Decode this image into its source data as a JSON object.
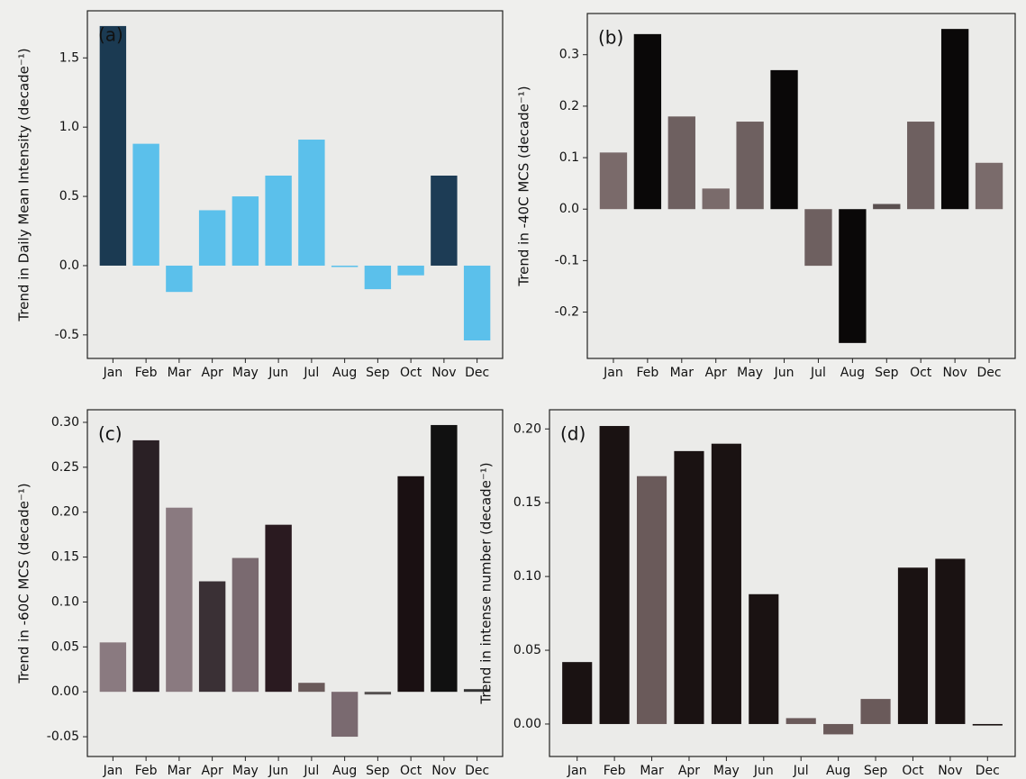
{
  "chart_data": [
    {
      "type": "bar",
      "label": "(a)",
      "ylabel": "Trend in Daily Mean Intensity (decade⁻¹)",
      "categories": [
        "Jan",
        "Feb",
        "Mar",
        "Apr",
        "May",
        "Jun",
        "Jul",
        "Aug",
        "Sep",
        "Oct",
        "Nov",
        "Dec"
      ],
      "values": [
        1.73,
        0.88,
        -0.19,
        0.4,
        0.5,
        0.65,
        0.91,
        -0.01,
        -0.17,
        -0.07,
        0.65,
        -0.54
      ],
      "colors": [
        "#1b3a52",
        "#5bc0eb",
        "#5bc0eb",
        "#5bc0eb",
        "#5bc0eb",
        "#5bc0eb",
        "#5bc0eb",
        "#5bc0eb",
        "#5bc0eb",
        "#5bc0eb",
        "#1d3c55",
        "#5bc0eb"
      ],
      "ylim": [
        -0.67,
        1.84
      ],
      "yticks": [
        -0.5,
        {
          "value": 0,
          "label": "0.0"
        },
        0.5,
        {
          "value": 1,
          "label": "1.0"
        },
        1.5
      ]
    },
    {
      "type": "bar",
      "label": "(b)",
      "ylabel": "Trend in -40C MCS (decade⁻¹)",
      "categories": [
        "Jan",
        "Feb",
        "Mar",
        "Apr",
        "May",
        "Jun",
        "Jul",
        "Aug",
        "Sep",
        "Oct",
        "Nov",
        "Dec"
      ],
      "values": [
        0.11,
        0.34,
        0.18,
        0.04,
        0.17,
        0.27,
        -0.11,
        -0.26,
        0.01,
        0.17,
        0.35,
        0.09
      ],
      "colors": [
        "#7a6a6a",
        "#0a0808",
        "#6e6060",
        "#7a6b6b",
        "#6e6060",
        "#0a0808",
        "#6e6060",
        "#0a0808",
        "#5a5050",
        "#6e6060",
        "#0a0808",
        "#7a6b6b"
      ],
      "ylim": [
        -0.29,
        0.38
      ],
      "yticks": [
        -0.2,
        -0.1,
        {
          "value": 0,
          "label": "0.0"
        },
        0.1,
        0.2,
        0.3
      ]
    },
    {
      "type": "bar",
      "label": "(c)",
      "ylabel": "Trend in -60C MCS (decade⁻¹)",
      "categories": [
        "Jan",
        "Feb",
        "Mar",
        "Apr",
        "May",
        "Jun",
        "Jul",
        "Aug",
        "Sep",
        "Oct",
        "Nov",
        "Dec"
      ],
      "values": [
        0.055,
        0.28,
        0.205,
        0.123,
        0.149,
        0.186,
        0.01,
        -0.05,
        -0.003,
        0.24,
        0.297,
        0.003
      ],
      "colors": [
        "#8a7a80",
        "#2a2025",
        "#8a7a80",
        "#3a3035",
        "#7a6a70",
        "#2a1a20",
        "#6a5a5a",
        "#7a6a70",
        "#555050",
        "#1a1012",
        "#111111",
        "#333333"
      ],
      "ylim": [
        -0.072,
        0.314
      ],
      "yticks": [
        -0.05,
        {
          "value": 0,
          "label": "0.00"
        },
        0.05,
        {
          "value": 0.1,
          "label": "0.10"
        },
        0.15,
        {
          "value": 0.2,
          "label": "0.20"
        },
        0.25,
        {
          "value": 0.3,
          "label": "0.30"
        }
      ]
    },
    {
      "type": "bar",
      "label": "(d)",
      "ylabel": "Trend in intense number (decade⁻¹)",
      "categories": [
        "Jan",
        "Feb",
        "Mar",
        "Apr",
        "May",
        "Jun",
        "Jul",
        "Aug",
        "Sep",
        "Oct",
        "Nov",
        "Dec"
      ],
      "values": [
        0.042,
        0.202,
        0.168,
        0.185,
        0.19,
        0.088,
        0.004,
        -0.007,
        0.017,
        0.106,
        0.112,
        -0.001
      ],
      "colors": [
        "#1a1212",
        "#1a1212",
        "#6a5a5a",
        "#1a1212",
        "#1a1212",
        "#1a1212",
        "#6a5a5a",
        "#6a5a5a",
        "#6a5a5a",
        "#1a1212",
        "#1a1212",
        "#1a1212"
      ],
      "ylim": [
        -0.022,
        0.213
      ],
      "yticks": [
        {
          "value": 0,
          "label": "0.00"
        },
        0.05,
        {
          "value": 0.1,
          "label": "0.10"
        },
        0.15,
        {
          "value": 0.2,
          "label": "0.20"
        }
      ]
    }
  ]
}
